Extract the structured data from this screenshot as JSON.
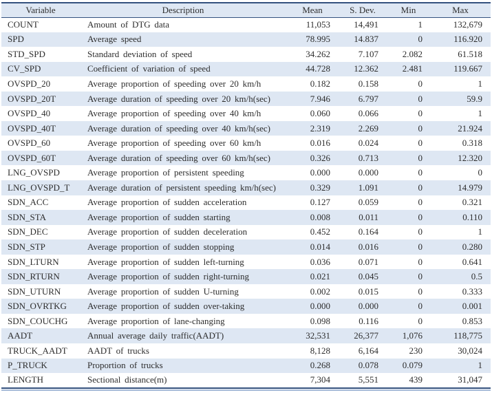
{
  "table": {
    "columns": [
      {
        "key": "variable",
        "label": "Variable"
      },
      {
        "key": "description",
        "label": "Description"
      },
      {
        "key": "mean",
        "label": "Mean"
      },
      {
        "key": "sdev",
        "label": "S. Dev."
      },
      {
        "key": "min",
        "label": "Min"
      },
      {
        "key": "max",
        "label": "Max"
      }
    ],
    "rows": [
      {
        "variable": "COUNT",
        "description": "Amount of DTG data",
        "mean": "11,053",
        "sdev": "14,491",
        "min": "1",
        "max": "132,679"
      },
      {
        "variable": "SPD",
        "description": "Average speed",
        "mean": "78.995",
        "sdev": "14.837",
        "min": "0",
        "max": "116.920"
      },
      {
        "variable": "STD_SPD",
        "description": "Standard deviation of speed",
        "mean": "34.262",
        "sdev": "7.107",
        "min": "2.082",
        "max": "61.518"
      },
      {
        "variable": "CV_SPD",
        "description": "Coefficient of variation of speed",
        "mean": "44.728",
        "sdev": "12.362",
        "min": "2.481",
        "max": "119.667"
      },
      {
        "variable": "OVSPD_20",
        "description": "Average proportion of speeding over 20 km/h",
        "mean": "0.182",
        "sdev": "0.158",
        "min": "0",
        "max": "1"
      },
      {
        "variable": "OVSPD_20T",
        "description": "Average duration of speeding over 20 km/h(sec)",
        "mean": "7.946",
        "sdev": "6.797",
        "min": "0",
        "max": "59.9"
      },
      {
        "variable": "OVSPD_40",
        "description": "Average proportion of speeding over 40 km/h",
        "mean": "0.060",
        "sdev": "0.066",
        "min": "0",
        "max": "1"
      },
      {
        "variable": "OVSPD_40T",
        "description": "Average duration of speeding over 40 km/h(sec)",
        "mean": "2.319",
        "sdev": "2.269",
        "min": "0",
        "max": "21.924"
      },
      {
        "variable": "OVSPD_60",
        "description": "Average proportion of speeding over 60 km/h",
        "mean": "0.016",
        "sdev": "0.024",
        "min": "0",
        "max": "0.318"
      },
      {
        "variable": "OVSPD_60T",
        "description": "Average duration of speeding over 60 km/h(sec)",
        "mean": "0.326",
        "sdev": "0.713",
        "min": "0",
        "max": "12.320"
      },
      {
        "variable": "LNG_OVSPD",
        "description": "Average proportion of persistent speeding",
        "mean": "0.000",
        "sdev": "0.000",
        "min": "0",
        "max": "0"
      },
      {
        "variable": "LNG_OVSPD_T",
        "description": "Average duration of persistent speeding km/h(sec)",
        "mean": "0.329",
        "sdev": "1.091",
        "min": "0",
        "max": "14.979"
      },
      {
        "variable": "SDN_ACC",
        "description": "Average proportion of sudden acceleration",
        "mean": "0.127",
        "sdev": "0.059",
        "min": "0",
        "max": "0.321"
      },
      {
        "variable": "SDN_STA",
        "description": "Average proportion of sudden starting",
        "mean": "0.008",
        "sdev": "0.011",
        "min": "0",
        "max": "0.110"
      },
      {
        "variable": "SDN_DEC",
        "description": "Average proportion of sudden deceleration",
        "mean": "0.452",
        "sdev": "0.164",
        "min": "0",
        "max": "1"
      },
      {
        "variable": "SDN_STP",
        "description": "Average proportion of sudden stopping",
        "mean": "0.014",
        "sdev": "0.016",
        "min": "0",
        "max": "0.280"
      },
      {
        "variable": "SDN_LTURN",
        "description": "Average proportion of sudden left-turning",
        "mean": "0.036",
        "sdev": "0.071",
        "min": "0",
        "max": "0.641"
      },
      {
        "variable": "SDN_RTURN",
        "description": "Average proportion of sudden right-turning",
        "mean": "0.021",
        "sdev": "0.045",
        "min": "0",
        "max": "0.5"
      },
      {
        "variable": "SDN_UTURN",
        "description": "Average proportion of sudden U-turning",
        "mean": "0.002",
        "sdev": "0.015",
        "min": "0",
        "max": "0.333"
      },
      {
        "variable": "SDN_OVRTKG",
        "description": "Average proportion of sudden over-taking",
        "mean": "0.000",
        "sdev": "0.000",
        "min": "0",
        "max": "0.001"
      },
      {
        "variable": "SDN_COUCHG",
        "description": "Average proportion of lane-changing",
        "mean": "0.098",
        "sdev": "0.116",
        "min": "0",
        "max": "0.853"
      },
      {
        "variable": "AADT",
        "description": "Annual average daily traffic(AADT)",
        "mean": "32,531",
        "sdev": "26,377",
        "min": "1,076",
        "max": "118,775"
      },
      {
        "variable": "TRUCK_AADT",
        "description": "AADT of trucks",
        "mean": "8,128",
        "sdev": "6,164",
        "min": "230",
        "max": "30,024"
      },
      {
        "variable": "P_TRUCK",
        "description": "Proportion of trucks",
        "mean": "0.268",
        "sdev": "0.078",
        "min": "0.079",
        "max": "1"
      },
      {
        "variable": "LENGTH",
        "description": "Sectional distance(m)",
        "mean": "7,304",
        "sdev": "5,551",
        "min": "439",
        "max": "31,047"
      }
    ],
    "colors": {
      "rule_navy": "#33517e",
      "band_light_blue": "#dee7f3",
      "bottom_light_rule": "#a5bad8",
      "text": "#2d2d2d"
    }
  }
}
